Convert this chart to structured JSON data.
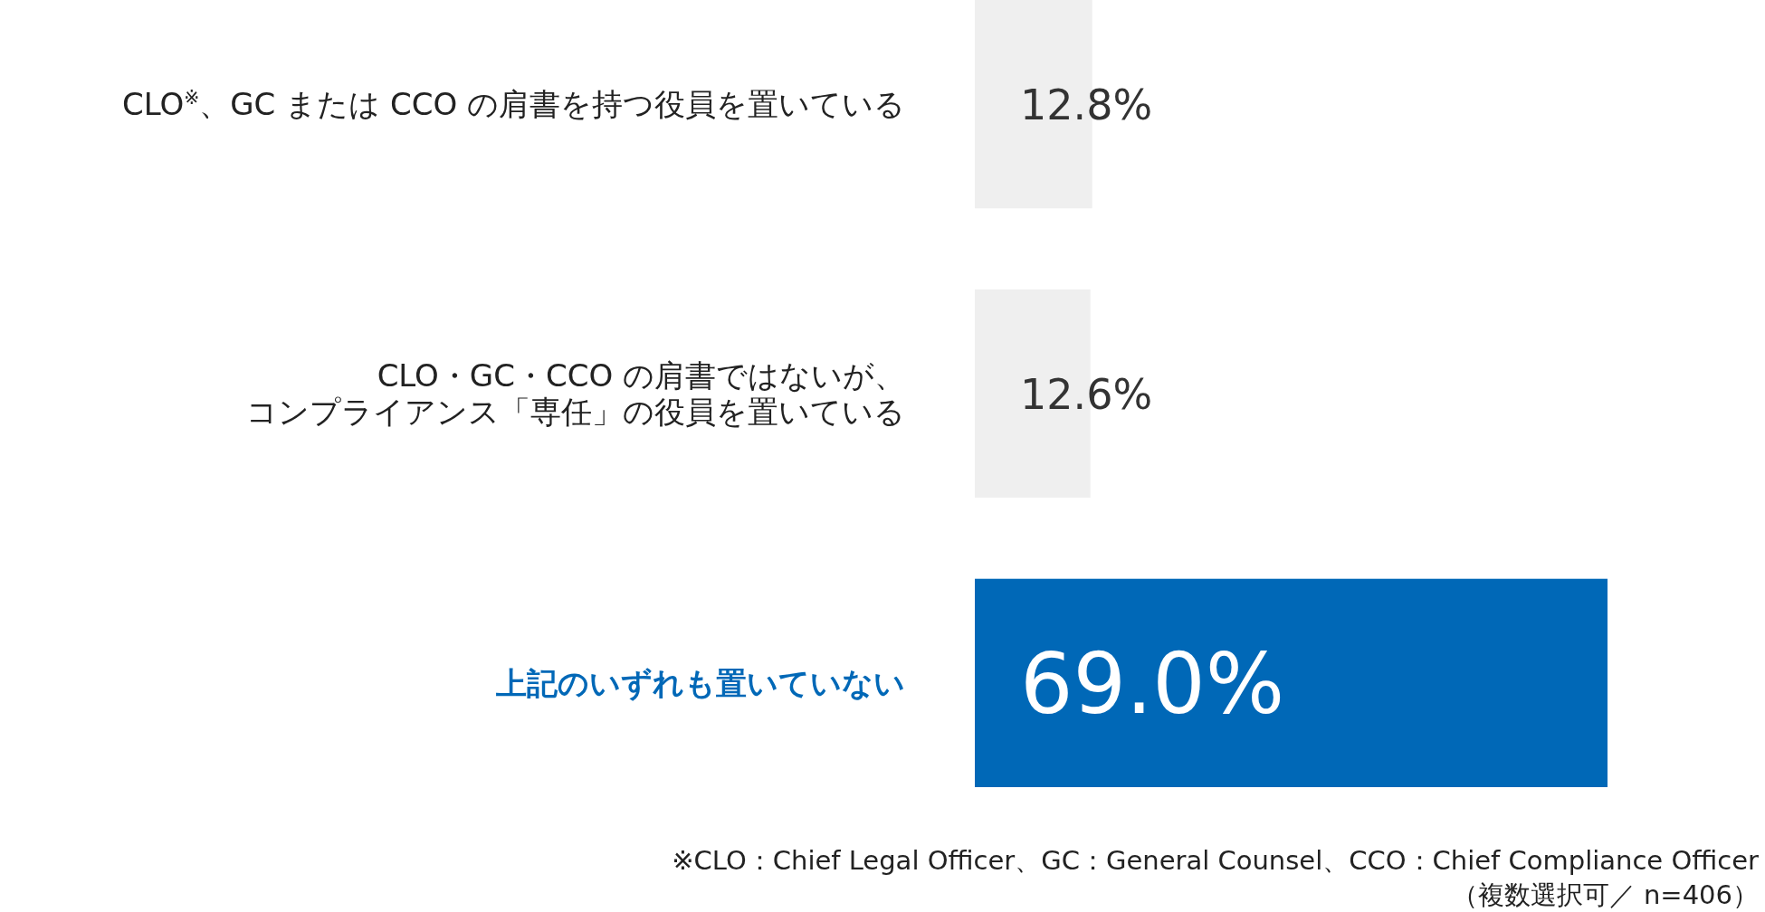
{
  "chart_data": {
    "type": "bar",
    "orientation": "horizontal",
    "categories": [
      "CLO$^{※}$、GC または CCO の肩書を持つ役員を置いている",
      "CLO・GC・CCO の肩書ではないが、コンプライアンス「専任」の役員を置いている",
      "上記のいずれも置いていない"
    ],
    "values": [
      12.8,
      12.6,
      69.0
    ],
    "colors": [
      "#efefef",
      "#efefef",
      "#0068b7"
    ],
    "value_labels": [
      "12.8%",
      "12.6%",
      "69.0%"
    ],
    "xlim": [
      0,
      69
    ],
    "annotations": [
      "※CLO：Chief Legal Officer、GC：General Counsel、CCO：Chief Compliance Officer",
      "（複数選択可／ n=406）"
    ]
  }
}
